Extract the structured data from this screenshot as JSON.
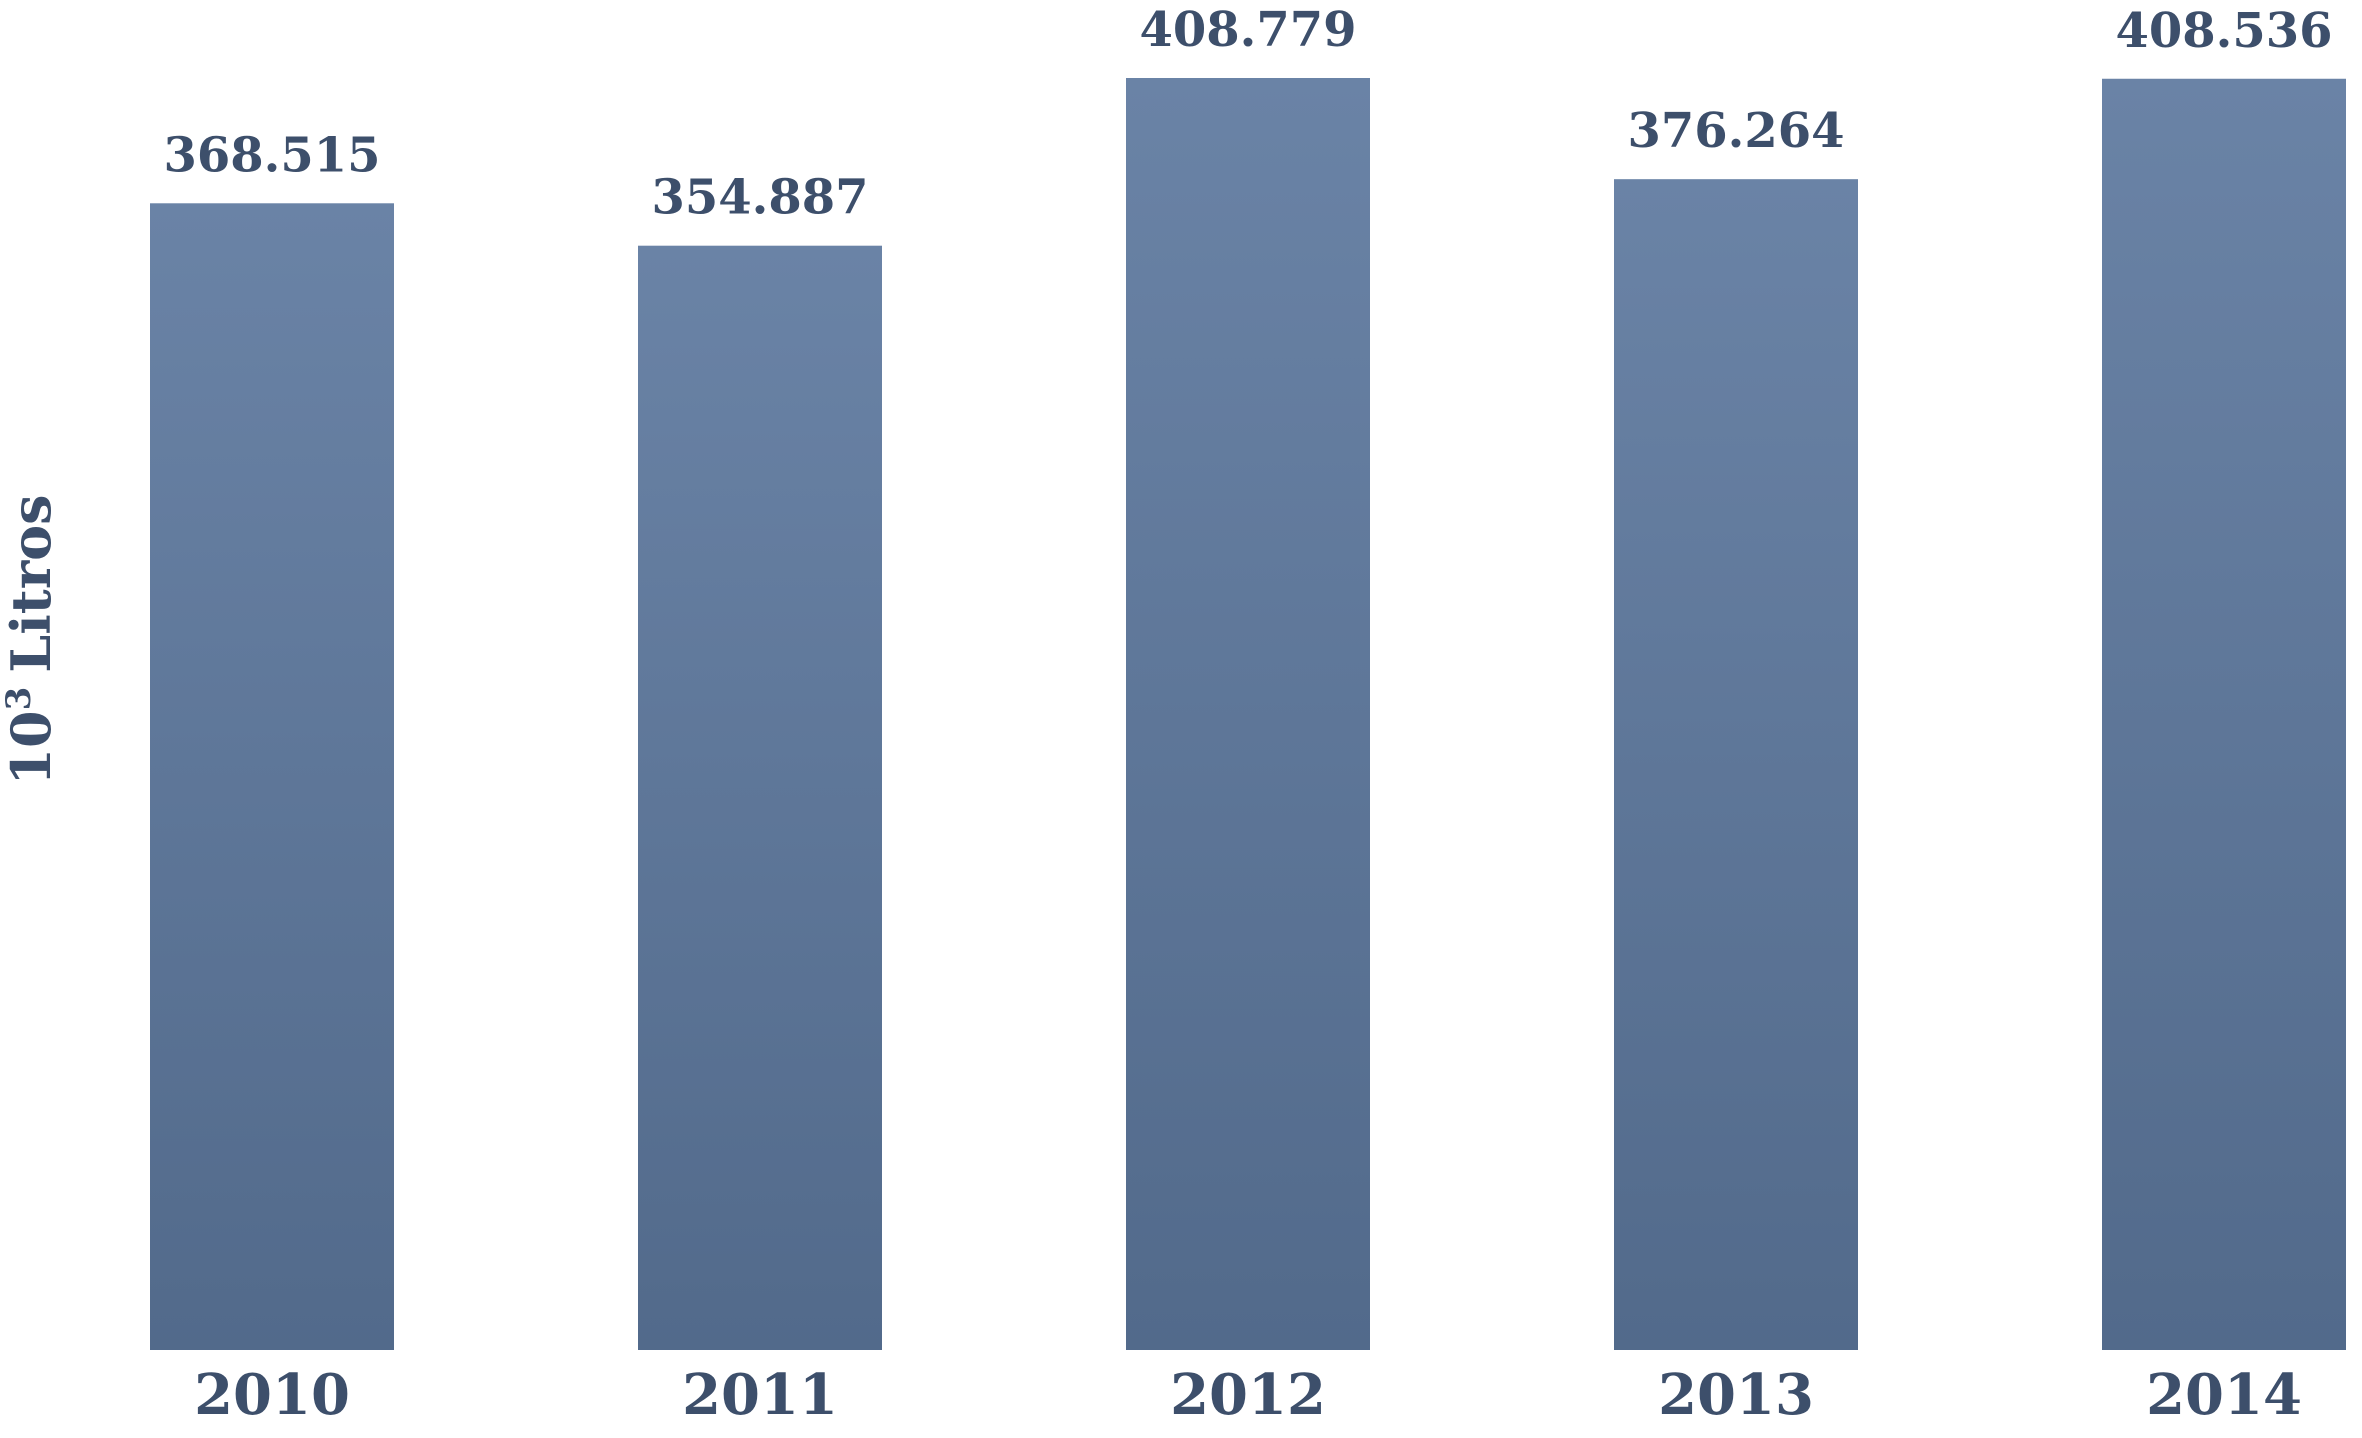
{
  "chart_data": {
    "type": "bar",
    "categories": [
      "2010",
      "2011",
      "2012",
      "2013",
      "2014"
    ],
    "values": [
      368515,
      354887,
      408779,
      376264,
      408536
    ],
    "value_labels": [
      "368.515",
      "354.887",
      "408.779",
      "376.264",
      "408.536"
    ],
    "ylabel": {
      "base": "10",
      "exponent": "3",
      "unit": "Litros"
    },
    "ylim": [
      0,
      408779
    ],
    "grid": false,
    "bar_color_top": "#6a83a6",
    "bar_color_bottom": "#526a8b",
    "text_color": "#3d4f6b"
  }
}
